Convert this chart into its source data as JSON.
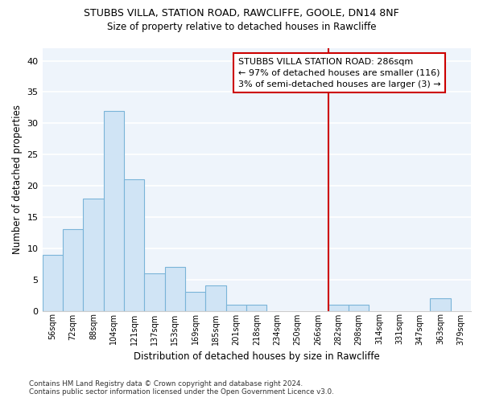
{
  "title": "STUBBS VILLA, STATION ROAD, RAWCLIFFE, GOOLE, DN14 8NF",
  "subtitle": "Size of property relative to detached houses in Rawcliffe",
  "xlabel": "Distribution of detached houses by size in Rawcliffe",
  "ylabel": "Number of detached properties",
  "bar_color": "#d0e4f5",
  "bar_edgecolor": "#7ab4d8",
  "background_color": "#eef4fb",
  "bins": [
    "56sqm",
    "72sqm",
    "88sqm",
    "104sqm",
    "121sqm",
    "137sqm",
    "153sqm",
    "169sqm",
    "185sqm",
    "201sqm",
    "218sqm",
    "234sqm",
    "250sqm",
    "266sqm",
    "282sqm",
    "298sqm",
    "314sqm",
    "331sqm",
    "347sqm",
    "363sqm",
    "379sqm"
  ],
  "values": [
    9,
    13,
    18,
    32,
    21,
    6,
    7,
    3,
    4,
    1,
    1,
    0,
    0,
    0,
    1,
    1,
    0,
    0,
    0,
    2,
    0
  ],
  "vline_color": "#cc0000",
  "annotation_text": "STUBBS VILLA STATION ROAD: 286sqm\n← 97% of detached houses are smaller (116)\n3% of semi-detached houses are larger (3) →",
  "annotation_box_color": "#ffffff",
  "annotation_box_edgecolor": "#cc0000",
  "footnote": "Contains HM Land Registry data © Crown copyright and database right 2024.\nContains public sector information licensed under the Open Government Licence v3.0.",
  "ylim": [
    0,
    42
  ],
  "yticks": [
    0,
    5,
    10,
    15,
    20,
    25,
    30,
    35,
    40
  ],
  "grid_color": "#ffffff",
  "vline_bin_index": 14
}
